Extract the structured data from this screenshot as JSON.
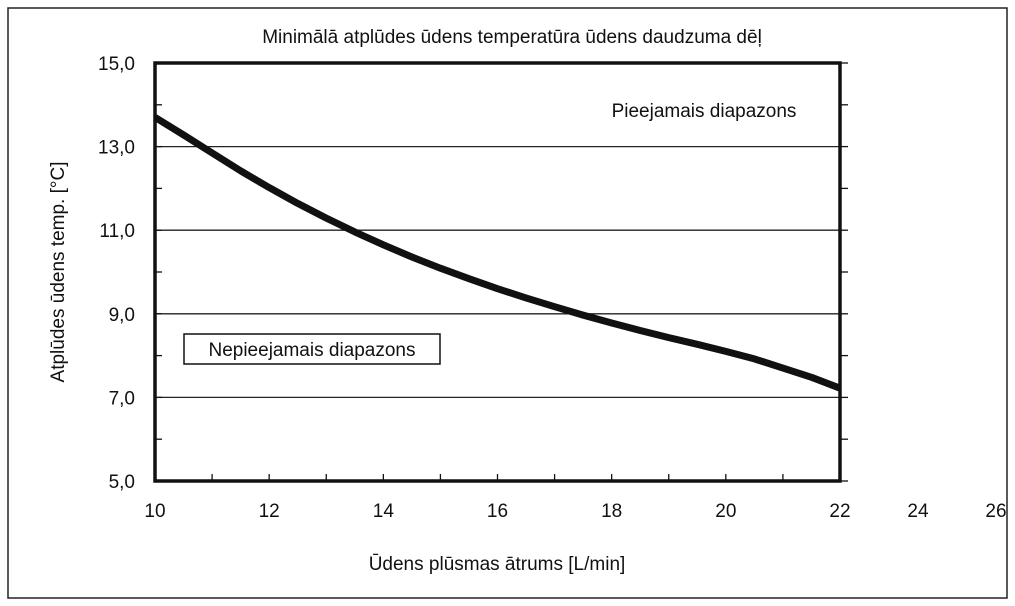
{
  "chart_data": {
    "type": "line",
    "title": "Minimālā atplūdes ūdens temperatūra ūdens daudzuma dēļ",
    "xlabel": "Ūdens plūsmas ātrums [L/min]",
    "ylabel": "Atplūdes ūdens temp. [°C]",
    "xlim": [
      10,
      22
    ],
    "ylim": [
      5,
      15
    ],
    "x_ticks": [
      "10",
      "12",
      "14",
      "16",
      "18",
      "20",
      "22",
      "24",
      "26"
    ],
    "y_ticks": [
      "5,0",
      "7,0",
      "9,0",
      "11,0",
      "13,0",
      "15,0"
    ],
    "grid": "horizontal",
    "annotations": {
      "upper_region": "Pieejamais diapazons",
      "lower_region": "Nepieejamais diapazons"
    },
    "series": [
      {
        "x": [
          10,
          10.5,
          11,
          11.5,
          12,
          12.5,
          13,
          13.5,
          14,
          14.5,
          15,
          15.5,
          16,
          16.5,
          17,
          17.5,
          18,
          18.5,
          19,
          19.5,
          20,
          20.5,
          21,
          21.5,
          22
        ],
        "y": [
          13.7,
          13.28,
          12.85,
          12.42,
          12.02,
          11.64,
          11.29,
          10.96,
          10.65,
          10.36,
          10.09,
          9.84,
          9.6,
          9.38,
          9.17,
          8.97,
          8.78,
          8.6,
          8.43,
          8.27,
          8.1,
          7.92,
          7.7,
          7.48,
          7.22
        ]
      }
    ]
  }
}
